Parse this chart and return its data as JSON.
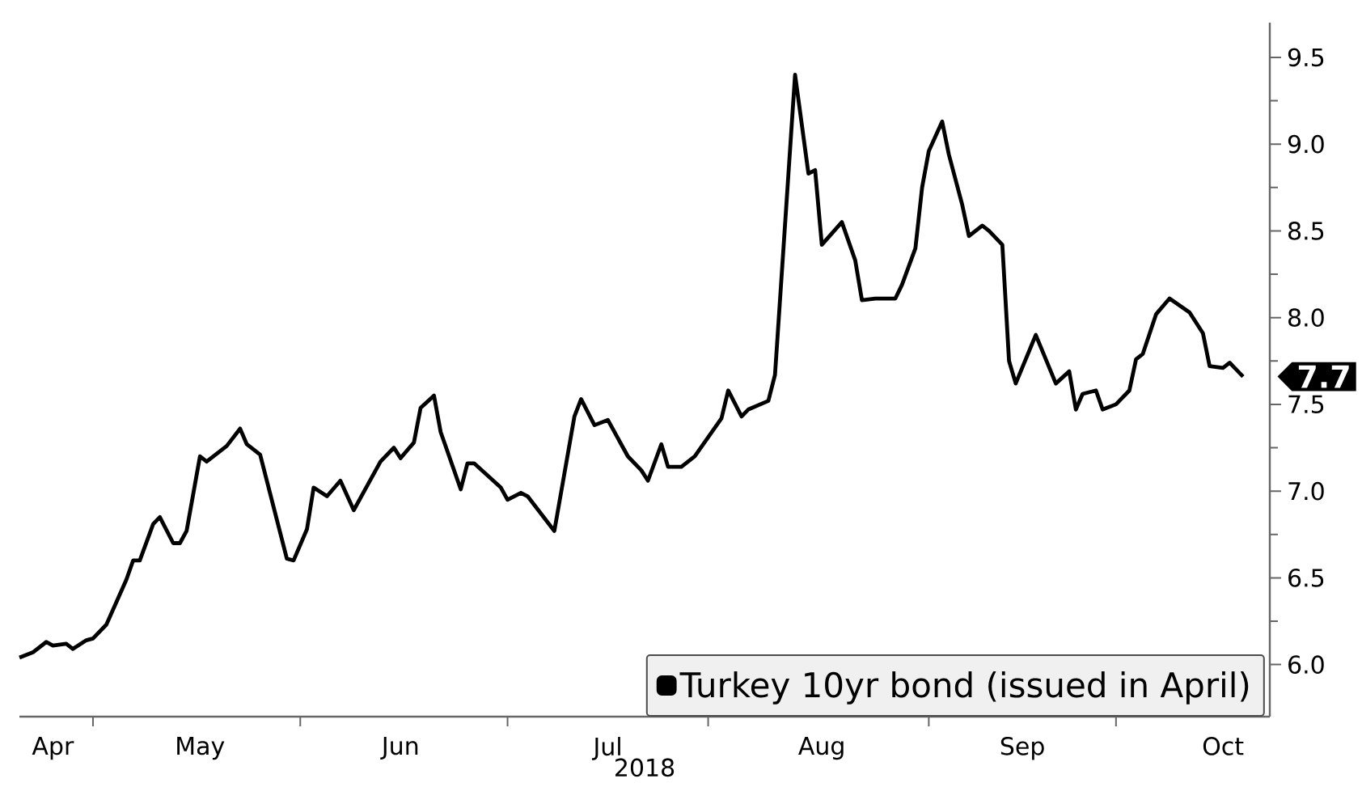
{
  "chart_data": {
    "type": "line",
    "xlabel": "2018",
    "x": [
      "2018-04-20",
      "2018-04-22",
      "2018-04-24",
      "2018-04-25",
      "2018-04-27",
      "2018-04-28",
      "2018-04-30",
      "2018-05-01",
      "2018-05-03",
      "2018-05-06",
      "2018-05-07",
      "2018-05-08",
      "2018-05-10",
      "2018-05-11",
      "2018-05-13",
      "2018-05-14",
      "2018-05-15",
      "2018-05-17",
      "2018-05-18",
      "2018-05-21",
      "2018-05-23",
      "2018-05-24",
      "2018-05-26",
      "2018-05-30",
      "2018-05-31",
      "2018-06-02",
      "2018-06-03",
      "2018-06-05",
      "2018-06-07",
      "2018-06-09",
      "2018-06-11",
      "2018-06-13",
      "2018-06-15",
      "2018-06-16",
      "2018-06-18",
      "2018-06-19",
      "2018-06-21",
      "2018-06-22",
      "2018-06-23",
      "2018-06-25",
      "2018-06-26",
      "2018-06-27",
      "2018-07-01",
      "2018-07-02",
      "2018-07-04",
      "2018-07-05",
      "2018-07-09",
      "2018-07-12",
      "2018-07-13",
      "2018-07-15",
      "2018-07-17",
      "2018-07-20",
      "2018-07-22",
      "2018-07-23",
      "2018-07-25",
      "2018-07-26",
      "2018-07-28",
      "2018-07-30",
      "2018-08-03",
      "2018-08-04",
      "2018-08-06",
      "2018-08-07",
      "2018-08-10",
      "2018-08-11",
      "2018-08-14",
      "2018-08-16",
      "2018-08-17",
      "2018-08-18",
      "2018-08-21",
      "2018-08-23",
      "2018-08-24",
      "2018-08-26",
      "2018-08-29",
      "2018-08-30",
      "2018-09-01",
      "2018-09-02",
      "2018-09-03",
      "2018-09-05",
      "2018-09-06",
      "2018-09-08",
      "2018-09-09",
      "2018-09-11",
      "2018-09-12",
      "2018-09-14",
      "2018-09-15",
      "2018-09-16",
      "2018-09-19",
      "2018-09-22",
      "2018-09-24",
      "2018-09-25",
      "2018-09-26",
      "2018-09-28",
      "2018-09-29",
      "2018-10-01",
      "2018-10-03",
      "2018-10-04",
      "2018-10-05",
      "2018-10-07",
      "2018-10-09",
      "2018-10-12",
      "2018-10-14",
      "2018-10-15",
      "2018-10-17",
      "2018-10-18",
      "2018-10-20"
    ],
    "series": [
      {
        "name": "Turkey 10yr bond (issued in April)",
        "color": "#000000",
        "values": [
          6.04,
          6.07,
          6.13,
          6.11,
          6.12,
          6.09,
          6.14,
          6.15,
          6.23,
          6.49,
          6.6,
          6.6,
          6.81,
          6.85,
          6.7,
          6.7,
          6.77,
          7.2,
          7.17,
          7.26,
          7.36,
          7.27,
          7.21,
          6.61,
          6.6,
          6.78,
          7.02,
          6.97,
          7.06,
          6.89,
          7.03,
          7.17,
          7.25,
          7.19,
          7.28,
          7.48,
          7.55,
          7.34,
          7.23,
          7.01,
          7.16,
          7.16,
          7.02,
          6.95,
          6.99,
          6.97,
          6.77,
          7.43,
          7.53,
          7.38,
          7.41,
          7.2,
          7.12,
          7.06,
          7.27,
          7.14,
          7.14,
          7.2,
          7.42,
          7.58,
          7.43,
          7.47,
          7.52,
          7.67,
          9.4,
          8.83,
          8.85,
          8.42,
          8.55,
          8.33,
          8.1,
          8.11,
          8.11,
          8.19,
          8.4,
          8.75,
          8.96,
          9.13,
          8.94,
          8.65,
          8.47,
          8.53,
          8.5,
          8.42,
          7.75,
          7.62,
          7.9,
          7.62,
          7.69,
          7.47,
          7.56,
          7.58,
          7.47,
          7.5,
          7.58,
          7.76,
          7.79,
          8.02,
          8.11,
          8.03,
          7.91,
          7.72,
          7.71,
          7.74,
          7.66
        ]
      }
    ],
    "xlim": [
      "2018-04-20",
      "2018-10-24"
    ],
    "xticks": [
      {
        "value": "2018-04-25",
        "label": "Apr"
      },
      {
        "value": "2018-05-01",
        "label": null
      },
      {
        "value": "2018-05-17",
        "label": "May"
      },
      {
        "value": "2018-06-01",
        "label": null
      },
      {
        "value": "2018-06-16",
        "label": "Jun"
      },
      {
        "value": "2018-07-02",
        "label": null
      },
      {
        "value": "2018-07-17",
        "label": "Jul"
      },
      {
        "value": "2018-08-01",
        "label": null
      },
      {
        "value": "2018-08-18",
        "label": "Aug"
      },
      {
        "value": "2018-09-03",
        "label": null
      },
      {
        "value": "2018-09-17",
        "label": "Sep"
      },
      {
        "value": "2018-10-01",
        "label": null
      },
      {
        "value": "2018-10-17",
        "label": "Oct"
      }
    ],
    "ylim": [
      5.7,
      9.7
    ],
    "yticks": [
      {
        "value": 6,
        "label": "6.0"
      },
      {
        "value": 6.25,
        "label": null
      },
      {
        "value": 6.5,
        "label": "6.5"
      },
      {
        "value": 6.75,
        "label": null
      },
      {
        "value": 7,
        "label": "7.0"
      },
      {
        "value": 7.25,
        "label": null
      },
      {
        "value": 7.5,
        "label": "7.5"
      },
      {
        "value": 7.75,
        "label": null
      },
      {
        "value": 8,
        "label": "8.0"
      },
      {
        "value": 8.25,
        "label": null
      },
      {
        "value": 8.5,
        "label": "8.5"
      },
      {
        "value": 8.75,
        "label": null
      },
      {
        "value": 9,
        "label": "9.0"
      },
      {
        "value": 9.25,
        "label": null
      },
      {
        "value": 9.5,
        "label": "9.5"
      }
    ],
    "annotations": [
      {
        "text": "7.7",
        "x": "2018-10-20",
        "y": 7.66
      }
    ],
    "legend": "bottom right",
    "grid": false,
    "marker": "none",
    "line_style": "solid"
  }
}
